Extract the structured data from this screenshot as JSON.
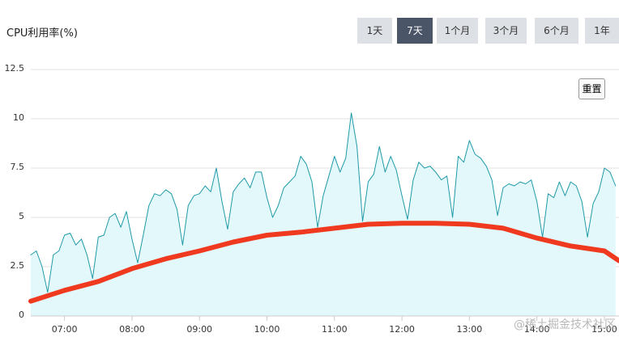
{
  "chart_data": {
    "type": "area-line",
    "title": "CPU利用率(%)",
    "xlim": [
      390,
      913
    ],
    "xticks": [
      {
        "value": 420,
        "label": "07:00"
      },
      {
        "value": 480,
        "label": "08:00"
      },
      {
        "value": 540,
        "label": "09:00"
      },
      {
        "value": 600,
        "label": "10:00"
      },
      {
        "value": 660,
        "label": "11:00"
      },
      {
        "value": 720,
        "label": "12:00"
      },
      {
        "value": 780,
        "label": "13:00"
      },
      {
        "value": 840,
        "label": "14:00"
      },
      {
        "value": 900,
        "label": "15:00"
      }
    ],
    "ylim": [
      0,
      12.5
    ],
    "yticks": [
      0,
      2.5,
      5,
      7.5,
      10,
      12.5
    ],
    "grid": true,
    "series": [
      {
        "color": "#1f9aa8",
        "fill": "#e3f8fb",
        "line_width": 1,
        "x": [
          390,
          395,
          400,
          405,
          410,
          415,
          420,
          425,
          430,
          435,
          440,
          445,
          450,
          455,
          460,
          465,
          470,
          475,
          480,
          485,
          490,
          495,
          500,
          505,
          510,
          515,
          520,
          525,
          530,
          535,
          540,
          545,
          550,
          555,
          560,
          565,
          570,
          575,
          580,
          585,
          590,
          595,
          600,
          605,
          610,
          615,
          620,
          625,
          630,
          635,
          640,
          645,
          650,
          655,
          660,
          665,
          670,
          675,
          680,
          685,
          690,
          695,
          700,
          705,
          710,
          715,
          720,
          725,
          730,
          735,
          740,
          745,
          750,
          755,
          760,
          765,
          770,
          775,
          780,
          785,
          790,
          795,
          800,
          805,
          810,
          815,
          820,
          825,
          830,
          835,
          840,
          845,
          850,
          855,
          860,
          865,
          870,
          875,
          880,
          885,
          890,
          895,
          900,
          905,
          910
        ],
        "values": [
          3.1,
          3.3,
          2.5,
          1.2,
          3.1,
          3.3,
          4.1,
          4.2,
          3.6,
          3.9,
          3.1,
          1.9,
          4.0,
          4.1,
          5.0,
          5.2,
          4.5,
          5.3,
          3.9,
          2.7,
          4.1,
          5.6,
          6.2,
          6.1,
          6.4,
          6.2,
          5.4,
          3.6,
          5.6,
          6.1,
          6.2,
          6.6,
          6.3,
          7.5,
          5.8,
          4.4,
          6.3,
          6.7,
          7.0,
          6.5,
          7.3,
          7.3,
          6.0,
          5.0,
          5.6,
          6.5,
          6.8,
          7.1,
          8.1,
          7.7,
          6.8,
          4.5,
          6.1,
          7.1,
          8.1,
          7.3,
          8.0,
          10.3,
          8.6,
          4.8,
          6.8,
          7.2,
          8.6,
          7.3,
          8.1,
          7.4,
          6.1,
          4.9,
          6.9,
          7.8,
          7.5,
          7.6,
          7.3,
          6.9,
          7.1,
          5.0,
          8.1,
          7.8,
          8.9,
          8.2,
          8.0,
          7.6,
          6.9,
          5.1,
          6.5,
          6.7,
          6.6,
          6.8,
          6.7,
          6.9,
          5.8,
          4.0,
          6.2,
          6.0,
          6.8,
          6.1,
          6.8,
          6.6,
          5.8,
          4.0,
          5.7,
          6.3,
          7.5,
          7.3,
          6.6
        ]
      },
      {
        "color": "#f03a1f",
        "line_width": 6,
        "x": [
          390,
          420,
          450,
          480,
          510,
          540,
          570,
          600,
          630,
          660,
          690,
          720,
          750,
          780,
          810,
          840,
          870,
          900,
          913
        ],
        "values": [
          0.75,
          1.3,
          1.75,
          2.4,
          2.9,
          3.3,
          3.75,
          4.1,
          4.25,
          4.45,
          4.65,
          4.7,
          4.7,
          4.65,
          4.45,
          3.95,
          3.55,
          3.3,
          2.8
        ]
      }
    ],
    "watermark": "@稀土掘金技术社区"
  },
  "range_buttons": [
    "1天",
    "7天",
    "1个月",
    "3个月",
    "6个月",
    "1年"
  ],
  "selected_range": 1,
  "reset_button": "重置"
}
